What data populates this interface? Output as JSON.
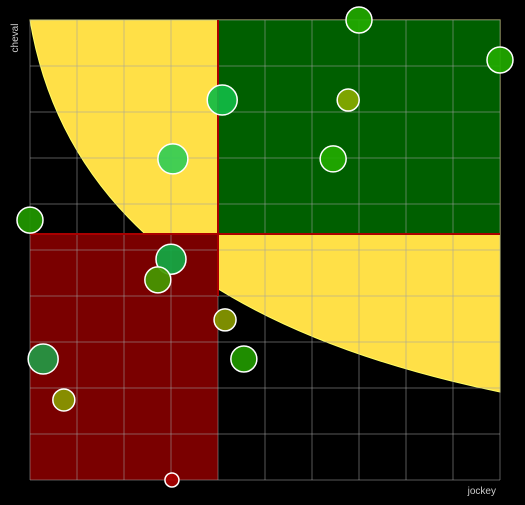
{
  "chart_data": {
    "type": "bubble",
    "x_label": "jockey",
    "y_label": "cheval",
    "xlim": [
      0,
      10
    ],
    "ylim": [
      0,
      10
    ],
    "xticks": [
      0,
      1,
      2,
      3,
      4,
      5,
      6,
      7,
      8,
      9,
      10
    ],
    "yticks": [
      0,
      1,
      2,
      3,
      4,
      5,
      6,
      7,
      8,
      9,
      10
    ],
    "grid": true,
    "x": [
      7.0,
      10.0,
      4.09,
      6.77,
      3.04,
      6.45,
      0.0,
      3.0,
      2.72,
      4.15,
      4.55,
      0.28,
      0.72,
      3.02
    ],
    "y": [
      10.0,
      9.13,
      8.26,
      8.26,
      6.98,
      6.98,
      5.65,
      4.8,
      4.35,
      3.48,
      2.63,
      2.63,
      1.74,
      0.0
    ],
    "sizes": [
      13,
      13,
      15,
      11,
      15,
      13,
      13,
      15,
      13,
      11,
      13,
      15,
      11,
      7
    ],
    "colors": [
      "#22aa00",
      "#22aa00",
      "#11bb44",
      "#88aa00",
      "#33cc55",
      "#22aa00",
      "#229900",
      "#11aa44",
      "#449900",
      "#889900",
      "#229900",
      "#229944",
      "#889900",
      "#aa0000"
    ]
  }
}
